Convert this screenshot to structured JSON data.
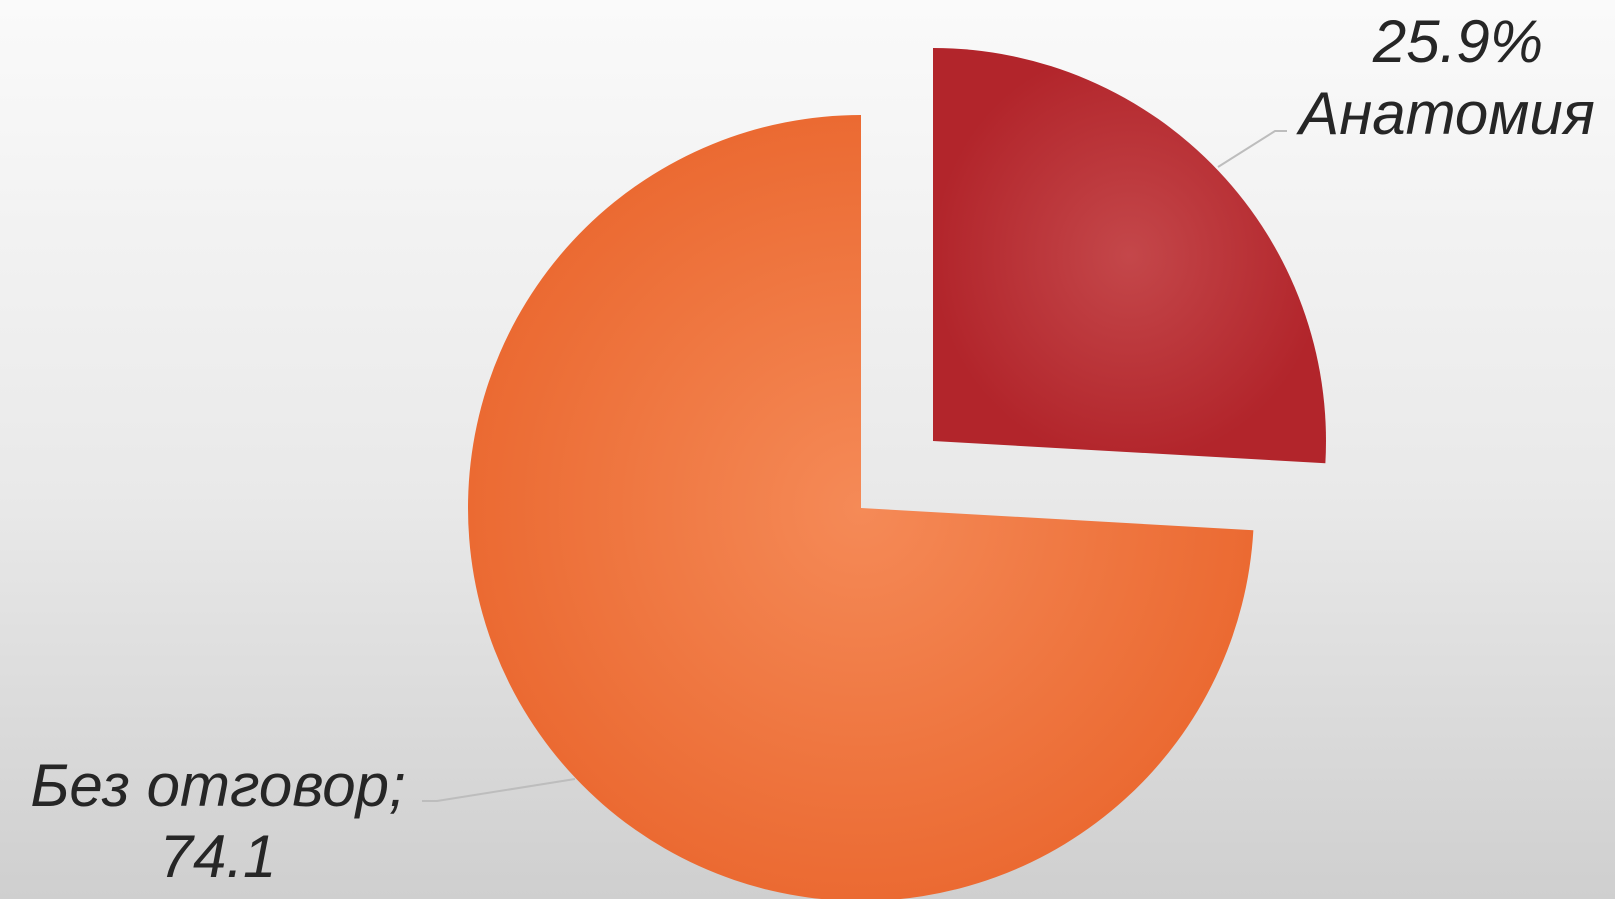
{
  "chart_data": {
    "type": "pie",
    "slices": [
      {
        "label": "Анатомия",
        "value": 25.9,
        "display_value": "25.9%",
        "color": "#b2252b",
        "highlight": "#c4474a",
        "exploded": true
      },
      {
        "label": "Без отговор;",
        "value": 74.1,
        "display_value": "74.1",
        "color": "#eb6a32",
        "highlight": "#f58a57",
        "exploded": false
      }
    ],
    "legend": "none"
  }
}
